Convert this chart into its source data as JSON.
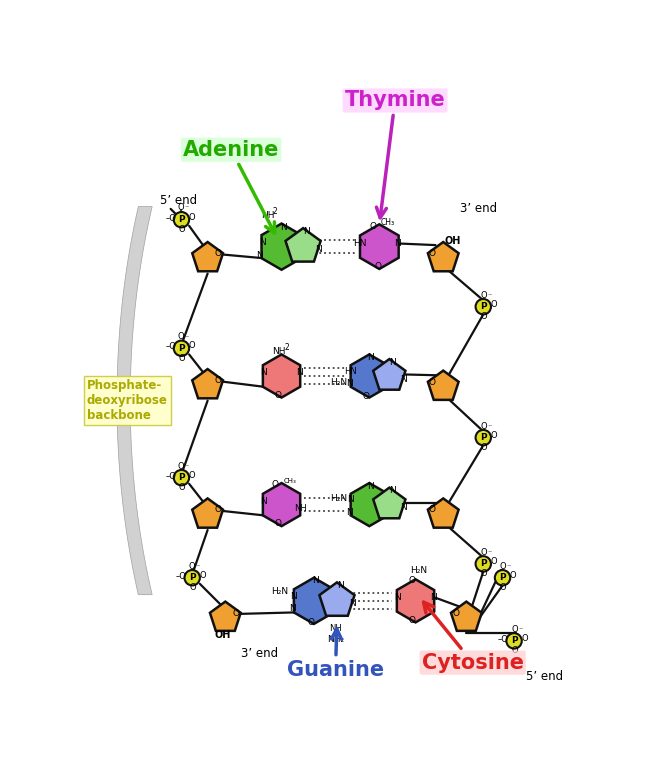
{
  "bg_color": "#ffffff",
  "adenine_label": "Adenine",
  "thymine_label": "Thymine",
  "guanine_label": "Guanine",
  "cytosine_label": "Cytosine",
  "backbone_label": "Phosphate-\ndeoxyribose\nbackbone",
  "five_prime_top": "5’ end",
  "three_prime_top": "3’ end",
  "three_prime_bottom": "3’ end",
  "five_prime_bottom": "5’ end",
  "adenine_color": "#55bb33",
  "adenine_inner": "#99dd88",
  "thymine_color": "#cc55cc",
  "thymine_inner": "#ee99ee",
  "guanine_color": "#5577cc",
  "guanine_inner": "#99aaee",
  "cytosine_color": "#ee7777",
  "cytosine_inner": "#ffaaaa",
  "sugar_color": "#f0a030",
  "phosphate_color": "#dddd22",
  "label_adenine_color": "#22aa00",
  "label_thymine_color": "#cc22cc",
  "label_guanine_color": "#3355bb",
  "label_cytosine_color": "#dd2222",
  "adenine_arrow_color": "#33bb00",
  "thymine_arrow_color": "#bb22bb",
  "guanine_arrow_color": "#3355bb",
  "cytosine_arrow_color": "#dd2222",
  "hbond_color": "#444444",
  "bond_color": "#111111",
  "backbone_fill": "#cccccc",
  "backbone_edge": "#999999"
}
